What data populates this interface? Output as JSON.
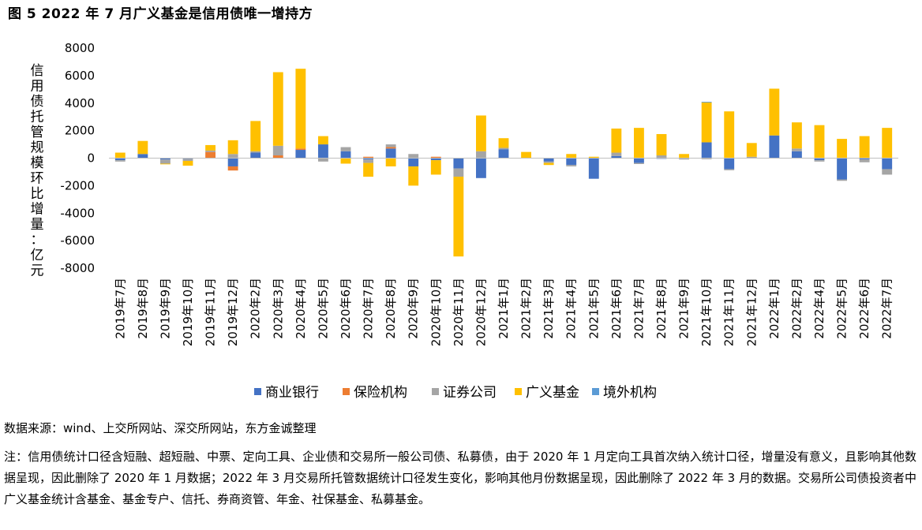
{
  "figure_title": "图 5  2022 年 7 月广义基金是信用债唯一增持方",
  "source": "数据来源：wind、上交所网站、深交所网站，东方金诚整理",
  "note": "注：信用债统计口径含短融、超短融、中票、定向工具、企业债和交易所一般公司债、私募债，由于 2020 年 1 月定向工具首次纳入统计口径，增量没有意义，且影响其他数据呈现，因此删除了 2020 年 1 月数据；2022 年 3 月交易所托管数据统计口径发生变化，影响其他月份数据呈现，因此删除了 2022 年 3 月的数据。交易所公司债投资者中广义基金统计含基金、基金专户、信托、券商资管、年金、社保基金、私募基金。",
  "chart_data": {
    "type": "bar",
    "stacked": true,
    "title": "图 5  2022 年 7 月广义基金是信用债唯一增持方",
    "xlabel": "",
    "ylabel": "信用债托管规模环比增量：亿元",
    "ylim": [
      -8000,
      8000
    ],
    "yticks": [
      8000,
      6000,
      4000,
      2000,
      0,
      -2000,
      -4000,
      -6000,
      -8000
    ],
    "grid": false,
    "legend_position": "bottom",
    "categories": [
      "2019年7月",
      "2019年8月",
      "2019年9月",
      "2019年10月",
      "2019年11月",
      "2019年12月",
      "2020年2月",
      "2020年3月",
      "2020年4月",
      "2020年5月",
      "2020年6月",
      "2020年7月",
      "2020年8月",
      "2020年9月",
      "2020年10月",
      "2020年11月",
      "2020年12月",
      "2021年1月",
      "2021年2月",
      "2021年3月",
      "2021年4月",
      "2021年5月",
      "2021年6月",
      "2021年7月",
      "2021年8月",
      "2021年9月",
      "2021年10月",
      "2021年11月",
      "2021年12月",
      "2022年1月",
      "2022年2月",
      "2022年4月",
      "2022年5月",
      "2022年6月",
      "2022年7月"
    ],
    "series": [
      {
        "name": "商业银行",
        "color": "#4472C4",
        "values": [
          -150,
          300,
          -100,
          -50,
          0,
          -600,
          400,
          0,
          600,
          1000,
          500,
          -100,
          700,
          -600,
          -150,
          -750,
          -1450,
          650,
          0,
          -250,
          -500,
          -1500,
          150,
          -350,
          -50,
          0,
          1150,
          -800,
          0,
          1650,
          500,
          -150,
          -1550,
          -100,
          -800
        ]
      },
      {
        "name": "保险机构",
        "color": "#ED7D31",
        "values": [
          0,
          0,
          0,
          0,
          450,
          -300,
          0,
          200,
          100,
          0,
          0,
          100,
          100,
          0,
          100,
          0,
          0,
          0,
          0,
          0,
          0,
          0,
          0,
          0,
          0,
          0,
          0,
          0,
          0,
          0,
          0,
          0,
          0,
          0,
          0
        ]
      },
      {
        "name": "证券公司",
        "color": "#A5A5A5",
        "values": [
          -100,
          0,
          -300,
          -150,
          100,
          300,
          100,
          700,
          0,
          -250,
          300,
          -250,
          200,
          300,
          0,
          -600,
          500,
          100,
          0,
          -100,
          -100,
          0,
          250,
          -80,
          200,
          -100,
          -80,
          -80,
          100,
          0,
          200,
          -100,
          -100,
          -200,
          -400
        ]
      },
      {
        "name": "广义基金",
        "color": "#FFC000",
        "values": [
          400,
          950,
          -50,
          -350,
          400,
          1000,
          2200,
          5350,
          5800,
          600,
          -400,
          -1000,
          -600,
          -1400,
          -1050,
          -5800,
          2600,
          700,
          450,
          -150,
          300,
          100,
          1750,
          2200,
          1550,
          300,
          2900,
          3400,
          1000,
          3400,
          1900,
          2400,
          1400,
          1600,
          2200
        ]
      },
      {
        "name": "境外机构",
        "color": "#5B9BD5",
        "values": [
          0,
          0,
          0,
          0,
          0,
          0,
          0,
          0,
          0,
          0,
          0,
          0,
          0,
          0,
          0,
          0,
          0,
          0,
          0,
          0,
          0,
          0,
          0,
          0,
          0,
          0,
          50,
          0,
          0,
          0,
          0,
          0,
          0,
          0,
          0
        ]
      }
    ]
  }
}
